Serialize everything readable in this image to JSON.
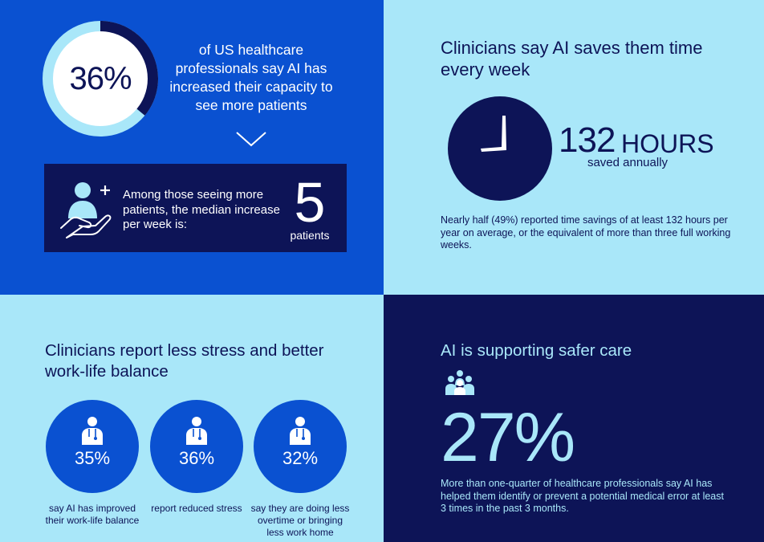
{
  "capacity": {
    "percent": "36%",
    "percent_value": 36,
    "description": "of US healthcare professionals say AI has increased their capacity to see more patients"
  },
  "patients": {
    "text": "Among those seeing more patients, the median increase per week is:",
    "value": "5",
    "unit": "patients"
  },
  "time_savings": {
    "title": "Clinicians say AI saves them time every week",
    "hours_value": "132",
    "hours_unit": "HOURS",
    "hours_sub": "saved annually",
    "note": "Nearly half (49%) reported time savings of at least 132 hours per year on average, or the equivalent of more than three full working weeks."
  },
  "stress": {
    "title": "Clinicians report less stress and better work-life balance",
    "stats": [
      {
        "value": "35%",
        "caption": "say AI has improved their work-life balance"
      },
      {
        "value": "36%",
        "caption": "report reduced stress"
      },
      {
        "value": "32%",
        "caption": "say they are doing less overtime or bringing less work home"
      }
    ]
  },
  "safety": {
    "title": "AI is supporting safer care",
    "value": "27%",
    "note": "More than one-quarter of healthcare professionals say AI has helped them identify or prevent a potential medical error at least 3 times in the past 3 months."
  },
  "colors": {
    "royal_blue": "#0A51D1",
    "navy": "#0D1457",
    "light_blue": "#A9E7F9",
    "white": "#FFFFFF"
  },
  "icons": [
    "patient-care-hand-icon",
    "chevron-down-icon",
    "clock-icon",
    "doctor-icon",
    "medical-team-icon"
  ]
}
